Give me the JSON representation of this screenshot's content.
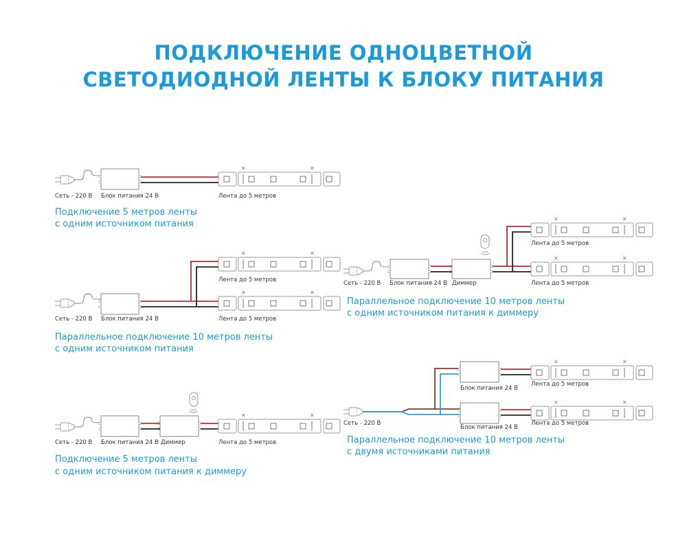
{
  "title": {
    "line1": "ПОДКЛЮЧЕНИЕ ОДНОЦВЕТНОЙ",
    "line2": "СВЕТОДИОДНОЙ ЛЕНТЫ К БЛОКУ ПИТАНИЯ"
  },
  "colors": {
    "accent": "#1c9ad6",
    "wire_positive": "#d6232f",
    "wire_negative": "#222222",
    "wire_phase": "#8b3a2a",
    "wire_neutral": "#2aa3dc"
  },
  "labels": {
    "mains": "Сеть - 220 В",
    "psu": "Блок питания 24 В",
    "dimmer": "Диммер",
    "strip": "Лента до 5 метров"
  },
  "diagrams": [
    {
      "caption1": "Подключение 5 метров ленты",
      "caption2": "с одним источником питания"
    },
    {
      "caption1": "Параллельное подключение 10 метров ленты",
      "caption2": "с одним источником питания"
    },
    {
      "caption1": "Подключение 5 метров ленты",
      "caption2": "с одним источником питания к диммеру"
    },
    {
      "caption1": "Параллельное подключение 10 метров ленты",
      "caption2": "с одним источником питания к диммеру"
    },
    {
      "caption1": "Параллельное подключение 10 метров ленты",
      "caption2": "с двумя источниками питания"
    }
  ]
}
